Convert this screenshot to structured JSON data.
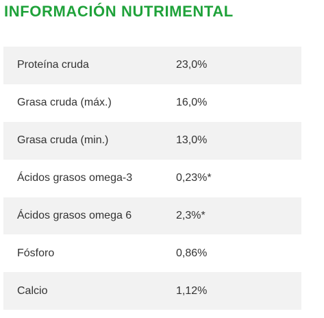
{
  "title": "INFORMACIÓN NUTRIMENTAL",
  "rows": [
    {
      "label": "Proteína cruda",
      "value": "23,0%"
    },
    {
      "label": "Grasa cruda (máx.)",
      "value": "16,0%"
    },
    {
      "label": "Grasa cruda (min.)",
      "value": "13,0%"
    },
    {
      "label": "Ácidos grasos omega-3",
      "value": "0,23%*"
    },
    {
      "label": "Ácidos grasos omega 6",
      "value": "2,3%*"
    },
    {
      "label": "Fósforo",
      "value": "0,86%"
    },
    {
      "label": "Calcio",
      "value": "1,12%"
    }
  ],
  "colors": {
    "title": "#1fa23a",
    "row_shade": "#f2f2f2",
    "text": "#333333"
  }
}
